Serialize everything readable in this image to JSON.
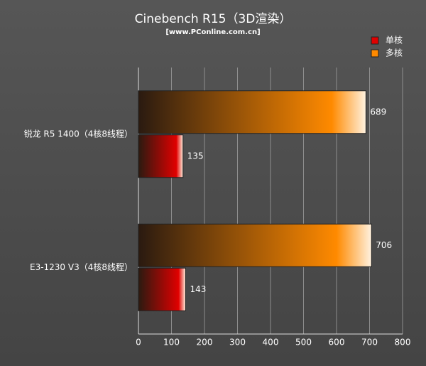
{
  "chart_data": {
    "type": "hbar",
    "title": "Cinebench R15（3D渲染）",
    "subtitle": "[www.PConline.com.cn]",
    "categories": [
      "锐龙 R5 1400（4核8线程）",
      "E3-1230 V3（4核8线程）"
    ],
    "series": [
      {
        "name": "单核",
        "color": "#e00000",
        "values": [
          135,
          143
        ]
      },
      {
        "name": "多核",
        "color": "#ff8a00",
        "values": [
          689,
          706
        ]
      }
    ],
    "xlim": [
      0,
      800
    ],
    "xticks": [
      0,
      100,
      200,
      300,
      400,
      500,
      600,
      700,
      800
    ],
    "grid": true,
    "legend": "top-right"
  }
}
